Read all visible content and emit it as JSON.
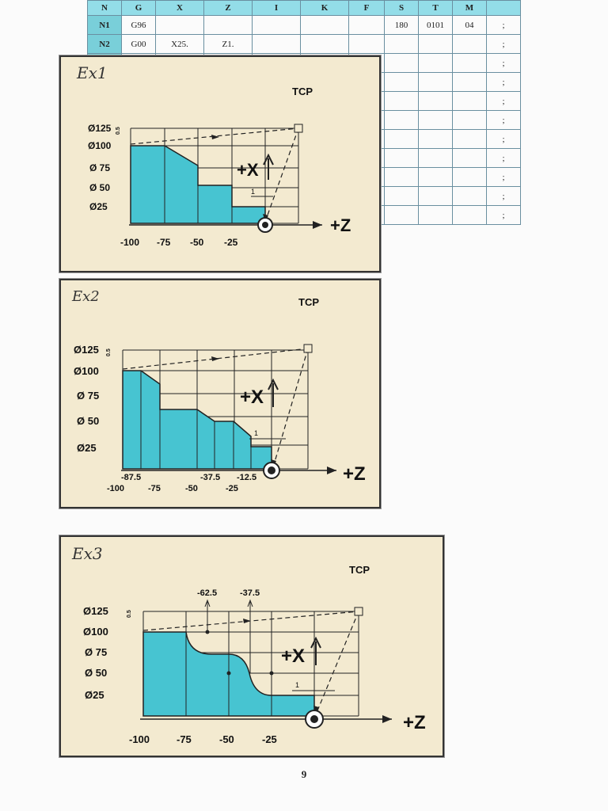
{
  "table": {
    "headers": [
      "N",
      "G",
      "X",
      "Z",
      "I",
      "K",
      "F",
      "S",
      "T",
      "M",
      ""
    ],
    "rows": [
      [
        "N1",
        "G96",
        "",
        "",
        "",
        "",
        "",
        "180",
        "0101",
        "04",
        ";"
      ],
      [
        "N2",
        "G00",
        "X25.",
        "Z1.",
        "",
        "",
        "",
        "",
        "",
        "",
        ";"
      ],
      [
        "",
        "",
        "",
        "",
        "",
        "",
        "",
        "",
        "",
        "",
        ";"
      ],
      [
        "",
        "",
        "",
        "",
        "",
        "",
        "",
        "",
        "",
        "",
        ";"
      ],
      [
        "",
        "",
        "",
        "",
        "",
        "",
        "",
        "",
        "",
        "",
        ";"
      ],
      [
        "",
        "",
        "",
        "",
        "",
        "",
        "",
        "",
        "",
        "",
        ";"
      ],
      [
        "",
        "",
        "",
        "",
        "",
        "",
        "",
        "",
        "",
        "",
        ";"
      ],
      [
        "",
        "",
        "",
        "",
        "",
        "",
        "",
        "",
        "",
        "",
        ";"
      ],
      [
        "",
        "",
        "",
        "",
        "",
        "",
        "",
        "",
        "",
        "",
        ";"
      ],
      [
        "",
        "",
        "",
        "",
        "",
        "",
        "",
        "",
        "",
        "",
        ";"
      ],
      [
        "",
        "",
        "",
        "",
        "",
        "",
        "",
        "",
        "",
        "",
        ";"
      ]
    ]
  },
  "panels": [
    {
      "label": "Ex1",
      "tcp": "TCP",
      "y_labels": [
        "Ø125",
        "Ø100",
        "Ø 75",
        "Ø 50",
        "Ø25"
      ],
      "allowance_label": "0.5",
      "x_labels": [
        "-100",
        "-75",
        "-50",
        "-25"
      ],
      "extra_x_labels": [],
      "plusx": "+X",
      "plusz": "+Z",
      "dim": "1"
    },
    {
      "label": "Ex2",
      "tcp": "TCP",
      "y_labels": [
        "Ø125",
        "Ø100",
        "Ø 75",
        "Ø 50",
        "Ø25"
      ],
      "allowance_label": "0.5",
      "x_labels": [
        "-100",
        "-75",
        "-50",
        "-25"
      ],
      "extra_x_labels": [
        "-87.5",
        "-37.5",
        "-12.5"
      ],
      "plusx": "+X",
      "plusz": "+Z",
      "dim": "1"
    },
    {
      "label": "Ex3",
      "tcp": "TCP",
      "y_labels": [
        "Ø125",
        "Ø100",
        "Ø 75",
        "Ø 50",
        "Ø25"
      ],
      "allowance_label": "0.5",
      "x_labels": [
        "-100",
        "-75",
        "-50",
        "-25"
      ],
      "extra_x_labels": [
        "-62.5",
        "-37.5"
      ],
      "plusx": "+X",
      "plusz": "+Z",
      "dim": "1"
    }
  ],
  "page_number": "9"
}
